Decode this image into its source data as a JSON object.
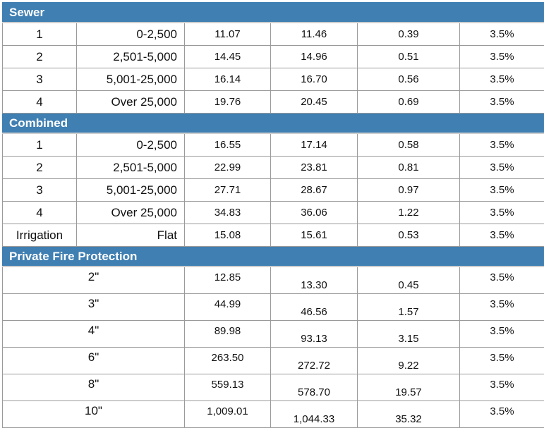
{
  "sections": [
    {
      "title": "Sewer",
      "rows": [
        {
          "cls": "1",
          "range": "0-2,500",
          "v1": "11.07",
          "v2": "11.46",
          "v3": "0.39",
          "v4": "3.5%"
        },
        {
          "cls": "2",
          "range": "2,501-5,000",
          "v1": "14.45",
          "v2": "14.96",
          "v3": "0.51",
          "v4": "3.5%"
        },
        {
          "cls": "3",
          "range": "5,001-25,000",
          "v1": "16.14",
          "v2": "16.70",
          "v3": "0.56",
          "v4": "3.5%"
        },
        {
          "cls": "4",
          "range": "Over 25,000",
          "v1": "19.76",
          "v2": "20.45",
          "v3": "0.69",
          "v4": "3.5%"
        }
      ]
    },
    {
      "title": "Combined",
      "rows": [
        {
          "cls": "1",
          "range": "0-2,500",
          "v1": "16.55",
          "v2": "17.14",
          "v3": "0.58",
          "v4": "3.5%"
        },
        {
          "cls": "2",
          "range": "2,501-5,000",
          "v1": "22.99",
          "v2": "23.81",
          "v3": "0.81",
          "v4": "3.5%"
        },
        {
          "cls": "3",
          "range": "5,001-25,000",
          "v1": "27.71",
          "v2": "28.67",
          "v3": "0.97",
          "v4": "3.5%"
        },
        {
          "cls": "4",
          "range": "Over 25,000",
          "v1": "34.83",
          "v2": "36.06",
          "v3": "1.22",
          "v4": "3.5%"
        },
        {
          "cls": "Irrigation",
          "range": "Flat",
          "v1": "15.08",
          "v2": "15.61",
          "v3": "0.53",
          "v4": "3.5%"
        }
      ]
    },
    {
      "title": "Private Fire Protection",
      "rows": [
        {
          "size": "2\"",
          "v1": "12.85",
          "v2": "13.30",
          "v3": "0.45",
          "v4": "3.5%"
        },
        {
          "size": "3\"",
          "v1": "44.99",
          "v2": "46.56",
          "v3": "1.57",
          "v4": "3.5%"
        },
        {
          "size": "4\"",
          "v1": "89.98",
          "v2": "93.13",
          "v3": "3.15",
          "v4": "3.5%"
        },
        {
          "size": "6\"",
          "v1": "263.50",
          "v2": "272.72",
          "v3": "9.22",
          "v4": "3.5%"
        },
        {
          "size": "8\"",
          "v1": "559.13",
          "v2": "578.70",
          "v3": "19.57",
          "v4": "3.5%"
        },
        {
          "size": "10\"",
          "v1": "1,009.01",
          "v2": "1,044.33",
          "v3": "35.32",
          "v4": "3.5%"
        }
      ]
    }
  ]
}
